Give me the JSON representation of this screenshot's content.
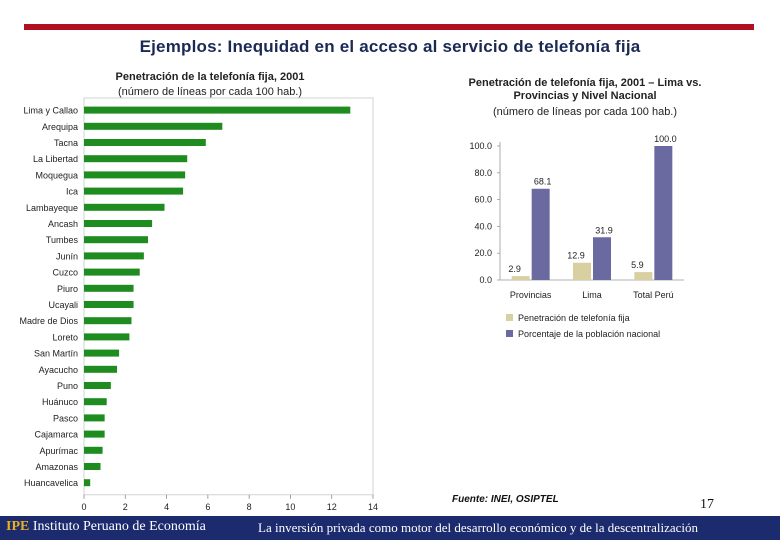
{
  "page": {
    "title": "Ejemplos: Inequidad en el acceso al servicio de telefonía fija",
    "source": "Fuente: INEI, OSIPTEL",
    "page_number": "17",
    "footer_logo": "IPE",
    "footer_org": "Instituto Peruano de Economía",
    "footer_slogan": "La inversión privada como motor del desarrollo económico y de la descentralización"
  },
  "colors": {
    "bar_green": "#1e8c1e",
    "series_penetracion": "#d8d0a0",
    "series_poblacion": "#6a6aa0",
    "brand_red": "#b01020",
    "footer_blue": "#1c2a6e"
  },
  "chart_data": [
    {
      "type": "bar",
      "orientation": "horizontal",
      "title": "Penetración de la telefonía fija, 2001",
      "subtitle": "(número de líneas por cada 100 hab.)",
      "xlim": [
        0,
        14
      ],
      "x_ticks": [
        "0",
        "2",
        "4",
        "6",
        "8",
        "10",
        "12",
        "14"
      ],
      "categories": [
        "Lima y Callao",
        "Arequipa",
        "Tacna",
        "La Libertad",
        "Moquegua",
        "Ica",
        "Lambayeque",
        "Ancash",
        "Tumbes",
        "Junín",
        "Cuzco",
        "Piuro",
        "Ucayali",
        "Madre de Dios",
        "Loreto",
        "San Martín",
        "Ayacucho",
        "Puno",
        "Huánuco",
        "Pasco",
        "Cajamarca",
        "Apurímac",
        "Amazonas",
        "Huancavelica"
      ],
      "values": [
        12.9,
        6.7,
        5.9,
        5.0,
        4.9,
        4.8,
        3.9,
        3.3,
        3.1,
        2.9,
        2.7,
        2.4,
        2.4,
        2.3,
        2.2,
        1.7,
        1.6,
        1.3,
        1.1,
        1.0,
        1.0,
        0.9,
        0.8,
        0.3
      ]
    },
    {
      "type": "bar",
      "title": "Penetración de telefonía fija, 2001 – Lima vs. Provincias y Nivel Nacional",
      "subtitle": "(número de líneas por cada 100 hab.)",
      "ylim": [
        0,
        100
      ],
      "y_ticks": [
        "0.0",
        "20.0",
        "40.0",
        "60.0",
        "80.0",
        "100.0"
      ],
      "categories": [
        "Provincias",
        "Lima",
        "Total Perú"
      ],
      "series": [
        {
          "name": "Penetración de telefonía fija",
          "values": [
            2.9,
            12.9,
            5.9
          ],
          "labels": [
            "2.9",
            "12.9",
            "5.9"
          ]
        },
        {
          "name": "Porcentaje de la población nacional",
          "values": [
            68.1,
            31.9,
            100.0
          ],
          "labels": [
            "68.1",
            "31.9",
            "100.0"
          ]
        }
      ],
      "legend_position": "bottom"
    }
  ]
}
